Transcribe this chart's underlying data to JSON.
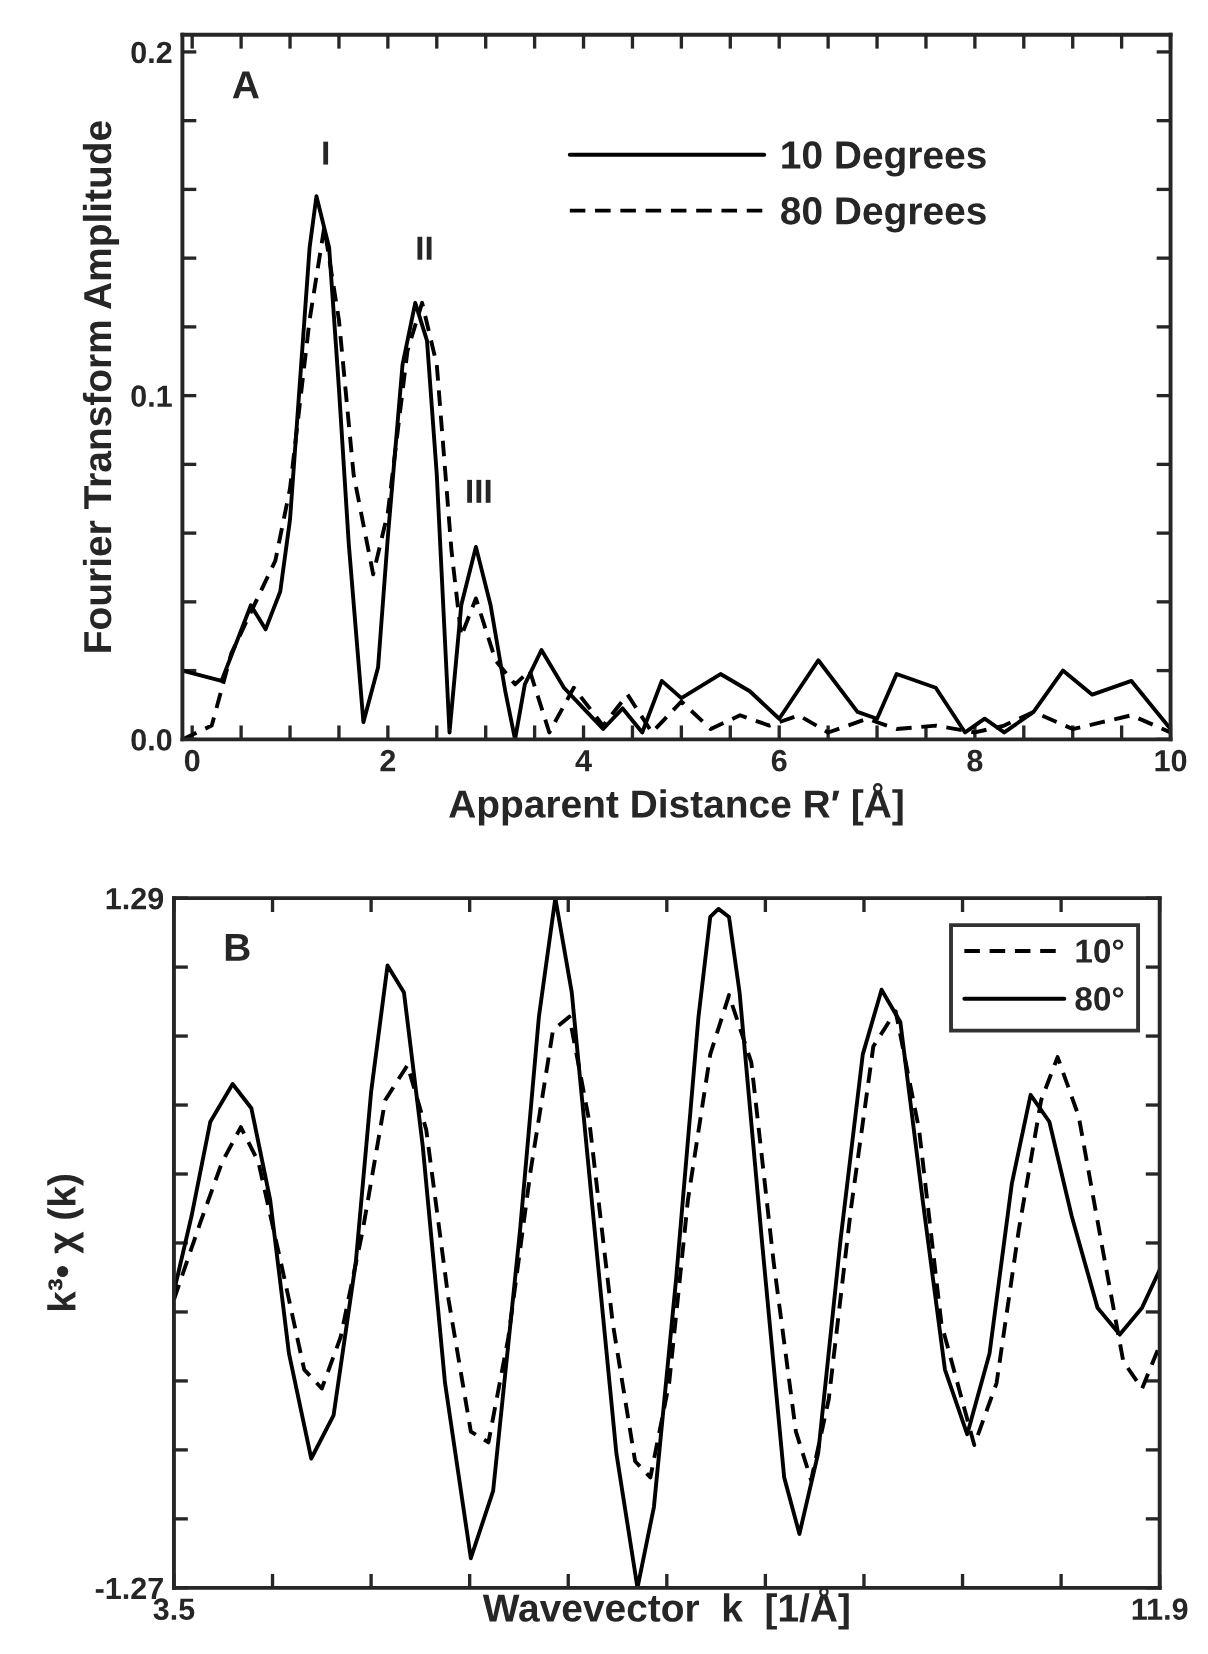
{
  "chart_data": [
    {
      "type": "line",
      "xlabel": "Apparent Distance R′ [Å]",
      "ylabel": "Fourier Transform Amplitude",
      "xlim": [
        -0.1,
        10
      ],
      "ylim": [
        0,
        0.205
      ],
      "xticks": [
        0,
        {
          "value": 0.5,
          "label": null
        },
        {
          "value": 1,
          "label": null
        },
        {
          "value": 1.5,
          "label": null
        },
        2,
        {
          "value": 2.5,
          "label": null
        },
        {
          "value": 3,
          "label": null
        },
        {
          "value": 3.5,
          "label": null
        },
        4,
        {
          "value": 4.5,
          "label": null
        },
        {
          "value": 5,
          "label": null
        },
        {
          "value": 5.5,
          "label": null
        },
        6,
        {
          "value": 6.5,
          "label": null
        },
        {
          "value": 7,
          "label": null
        },
        {
          "value": 7.5,
          "label": null
        },
        8,
        {
          "value": 8.5,
          "label": null
        },
        {
          "value": 9,
          "label": null
        },
        {
          "value": 9.5,
          "label": null
        },
        10
      ],
      "yticks": [
        {
          "value": 0,
          "label": "0.0"
        },
        {
          "value": 0.02,
          "label": null
        },
        {
          "value": 0.04,
          "label": null
        },
        {
          "value": 0.06,
          "label": null
        },
        {
          "value": 0.08,
          "label": null
        },
        0.1,
        {
          "value": 0.12,
          "label": null
        },
        {
          "value": 0.14,
          "label": null
        },
        {
          "value": 0.16,
          "label": null
        },
        {
          "value": 0.18,
          "label": null
        },
        0.2
      ],
      "legend": "top right",
      "grid": false,
      "annotations": [
        "A",
        "I",
        "II",
        "III"
      ],
      "series": [
        {
          "name": "10 Degrees",
          "color": "#000000",
          "line_style": "solid",
          "x": [
            -0.1,
            0.3,
            0.6,
            0.75,
            0.9,
            1.0,
            1.2,
            1.27,
            1.4,
            1.5,
            1.6,
            1.75,
            1.9,
            2.0,
            2.15,
            2.28,
            2.4,
            2.5,
            2.63,
            2.75,
            2.9,
            3.05,
            3.2,
            3.3,
            3.4,
            3.57,
            3.8,
            4.0,
            4.2,
            4.4,
            4.6,
            4.8,
            5.0,
            5.4,
            5.7,
            6.0,
            6.4,
            6.8,
            7.0,
            7.2,
            7.6,
            7.9,
            8.1,
            8.3,
            8.6,
            8.9,
            9.2,
            9.6,
            10
          ],
          "values": [
            0.02,
            0.017,
            0.039,
            0.032,
            0.043,
            0.064,
            0.143,
            0.158,
            0.143,
            0.102,
            0.057,
            0.005,
            0.021,
            0.059,
            0.109,
            0.127,
            0.116,
            0.077,
            0.002,
            0.039,
            0.056,
            0.039,
            0.014,
            0.0,
            0.016,
            0.026,
            0.015,
            0.009,
            0.003,
            0.009,
            0.002,
            0.017,
            0.012,
            0.019,
            0.014,
            0.006,
            0.023,
            0.008,
            0.006,
            0.019,
            0.015,
            0.002,
            0.006,
            0.002,
            0.008,
            0.02,
            0.013,
            0.017,
            0.003
          ]
        },
        {
          "name": "80 Degrees",
          "color": "#000000",
          "line_style": "dashed",
          "x": [
            -0.1,
            0.2,
            0.4,
            0.6,
            0.85,
            1.0,
            1.2,
            1.35,
            1.5,
            1.65,
            1.85,
            2.0,
            2.2,
            2.35,
            2.5,
            2.65,
            2.75,
            2.9,
            3.1,
            3.3,
            3.45,
            3.65,
            3.9,
            4.2,
            4.45,
            4.7,
            5.0,
            5.3,
            5.6,
            5.9,
            6.2,
            6.5,
            6.9,
            7.2,
            7.6,
            8.0,
            8.3,
            8.6,
            9.0,
            9.3,
            9.6,
            10
          ],
          "values": [
            0.0,
            0.004,
            0.025,
            0.037,
            0.052,
            0.073,
            0.122,
            0.149,
            0.122,
            0.077,
            0.048,
            0.066,
            0.113,
            0.127,
            0.109,
            0.055,
            0.03,
            0.041,
            0.023,
            0.016,
            0.02,
            0.002,
            0.015,
            0.004,
            0.013,
            0.002,
            0.011,
            0.003,
            0.007,
            0.004,
            0.007,
            0.002,
            0.006,
            0.003,
            0.004,
            0.002,
            0.004,
            0.008,
            0.003,
            0.005,
            0.007,
            0.002
          ]
        }
      ]
    },
    {
      "type": "line",
      "xlabel": "Wavevector  k  [1/Å]",
      "ylabel": "k³• χ (k)",
      "xlim": [
        3.5,
        11.9
      ],
      "ylim": [
        -1.27,
        1.29
      ],
      "xticks": [
        3.5,
        {
          "value": 4.34,
          "label": null
        },
        {
          "value": 5.18,
          "label": null
        },
        {
          "value": 6.02,
          "label": null
        },
        {
          "value": 6.86,
          "label": null
        },
        {
          "value": 7.7,
          "label": null
        },
        {
          "value": 8.54,
          "label": null
        },
        {
          "value": 9.38,
          "label": null
        },
        {
          "value": 10.22,
          "label": null
        },
        {
          "value": 11.06,
          "label": null
        },
        11.9
      ],
      "yticks": [
        -1.27,
        {
          "value": -1.014,
          "label": null
        },
        {
          "value": -0.758,
          "label": null
        },
        {
          "value": -0.502,
          "label": null
        },
        {
          "value": -0.246,
          "label": null
        },
        {
          "value": 0.01,
          "label": null
        },
        {
          "value": 0.266,
          "label": null
        },
        {
          "value": 0.522,
          "label": null
        },
        {
          "value": 0.778,
          "label": null
        },
        {
          "value": 1.034,
          "label": null
        },
        1.29
      ],
      "legend": "top right",
      "grid": false,
      "annotations": [
        "B"
      ],
      "series": [
        {
          "name": "10°",
          "color": "#000000",
          "line_style": "dashed",
          "x": [
            3.5,
            3.72,
            3.91,
            4.07,
            4.22,
            4.41,
            4.61,
            4.76,
            4.92,
            5.11,
            5.3,
            5.49,
            5.65,
            5.84,
            6.03,
            6.18,
            6.35,
            6.54,
            6.73,
            6.87,
            7.04,
            7.24,
            7.43,
            7.56,
            7.72,
            7.88,
            8.07,
            8.23,
            8.42,
            8.61,
            8.8,
            8.93,
            9.08,
            9.27,
            9.46,
            9.65,
            9.85,
            10.04,
            10.32,
            10.51,
            10.7,
            10.89,
            11.03,
            11.21,
            11.4,
            11.59,
            11.75,
            11.9
          ],
          "values": [
            -0.2,
            0.08,
            0.31,
            0.44,
            0.31,
            -0.06,
            -0.46,
            -0.53,
            -0.34,
            0.06,
            0.54,
            0.67,
            0.43,
            -0.2,
            -0.69,
            -0.73,
            -0.34,
            0.28,
            0.8,
            0.85,
            0.46,
            -0.29,
            -0.8,
            -0.86,
            -0.51,
            0.17,
            0.71,
            0.93,
            0.68,
            -0.06,
            -0.69,
            -0.87,
            -0.57,
            0.14,
            0.74,
            0.87,
            0.43,
            -0.29,
            -0.74,
            -0.51,
            0.06,
            0.54,
            0.7,
            0.48,
            0.02,
            -0.43,
            -0.53,
            -0.37
          ]
        },
        {
          "name": "80°",
          "color": "#000000",
          "line_style": "solid",
          "x": [
            3.5,
            3.65,
            3.81,
            4.0,
            4.16,
            4.32,
            4.48,
            4.67,
            4.86,
            5.05,
            5.18,
            5.32,
            5.46,
            5.62,
            5.81,
            6.03,
            6.22,
            6.45,
            6.61,
            6.75,
            6.89,
            7.08,
            7.27,
            7.45,
            7.59,
            7.78,
            7.97,
            8.07,
            8.14,
            8.23,
            8.32,
            8.51,
            8.7,
            8.83,
            8.99,
            9.18,
            9.37,
            9.53,
            9.69,
            9.88,
            10.07,
            10.26,
            10.45,
            10.64,
            10.8,
            10.96,
            11.15,
            11.37,
            11.56,
            11.75,
            11.9
          ],
          "values": [
            -0.17,
            0.11,
            0.46,
            0.6,
            0.51,
            0.17,
            -0.4,
            -0.79,
            -0.63,
            -0.06,
            0.57,
            1.04,
            0.94,
            0.37,
            -0.51,
            -1.16,
            -0.91,
            0.06,
            0.85,
            1.29,
            0.94,
            0.08,
            -0.77,
            -1.27,
            -0.97,
            -0.12,
            0.85,
            1.22,
            1.25,
            1.22,
            0.94,
            0.02,
            -0.86,
            -1.07,
            -0.77,
            0.02,
            0.71,
            0.95,
            0.83,
            0.17,
            -0.46,
            -0.7,
            -0.4,
            0.23,
            0.56,
            0.46,
            0.11,
            -0.23,
            -0.33,
            -0.23,
            -0.09
          ]
        }
      ]
    }
  ]
}
